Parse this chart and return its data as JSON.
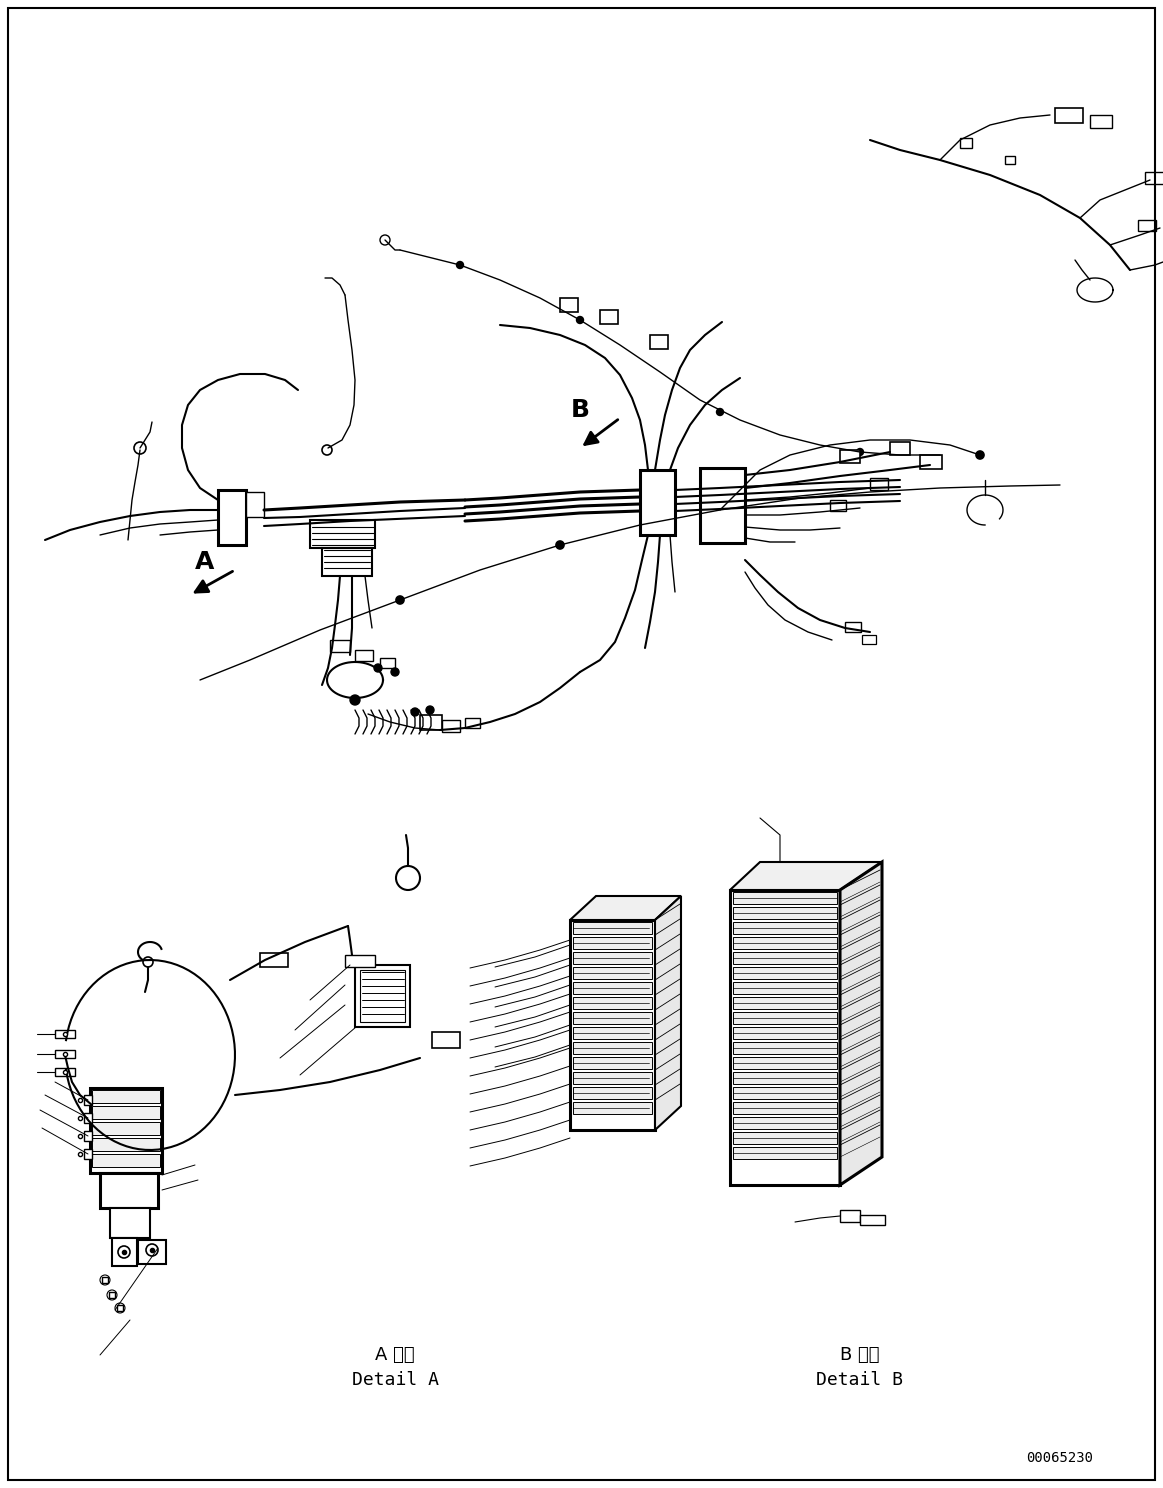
{
  "figsize": [
    11.63,
    14.88
  ],
  "dpi": 100,
  "background": "#ffffff",
  "text_A_kanji": "A 詳細",
  "text_A_detail": "Detail A",
  "text_B_kanji": "B 詳細",
  "text_B_detail": "Detail B",
  "text_code": "00065230",
  "label_A": "A",
  "label_B": "B",
  "line_color": "#000000",
  "lw_heavy": 2.2,
  "lw_medium": 1.5,
  "lw_thin": 1.0,
  "lw_wire": 1.8
}
